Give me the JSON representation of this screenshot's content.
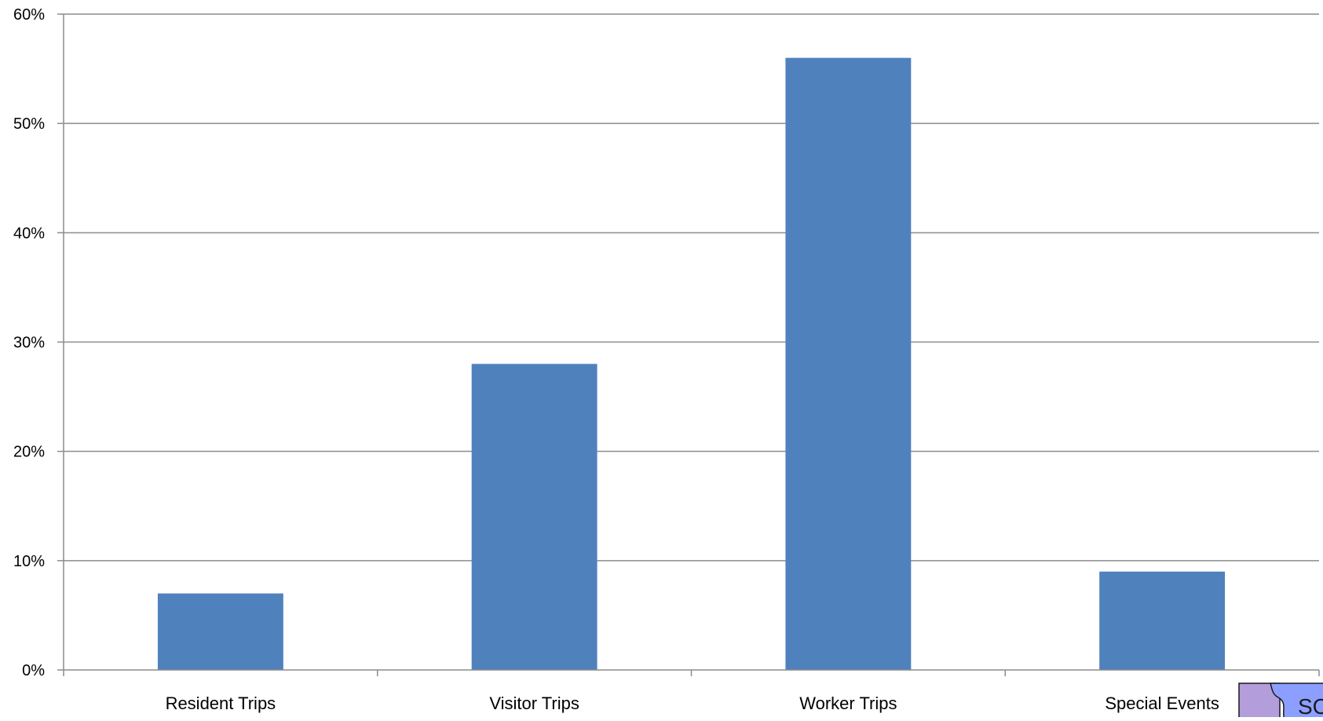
{
  "chart_data": {
    "type": "bar",
    "title": "",
    "xlabel": "",
    "ylabel": "",
    "categories": [
      "Resident Trips",
      "Visitor Trips",
      "Worker Trips",
      "Special Events"
    ],
    "values": [
      7,
      28,
      56,
      9
    ],
    "value_unit": "%",
    "ylim": [
      0,
      60
    ],
    "yticks": [
      0,
      10,
      20,
      30,
      40,
      50,
      60
    ],
    "ytick_labels": [
      "0%",
      "10%",
      "20%",
      "30%",
      "40%",
      "50%",
      "60%"
    ],
    "grid": true,
    "legend": "none",
    "colors": {
      "bar": "#4f81bd",
      "grid": "#8c8c8c"
    }
  },
  "logo": {
    "text": "SC",
    "colors": {
      "left": "#b39ddb",
      "right": "#8c9eff"
    }
  }
}
